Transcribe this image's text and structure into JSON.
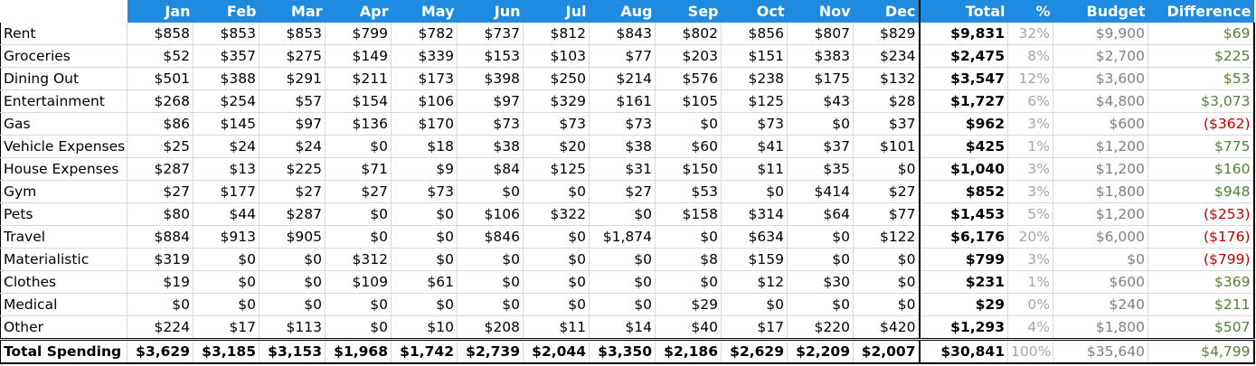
{
  "headers": {
    "months": [
      "Jan",
      "Feb",
      "Mar",
      "Apr",
      "May",
      "Jun",
      "Jul",
      "Aug",
      "Sep",
      "Oct",
      "Nov",
      "Dec"
    ],
    "total": "Total",
    "pct": "%",
    "budget": "Budget",
    "difference": "Difference"
  },
  "rows": [
    {
      "name": "Rent",
      "months": [
        "$858",
        "$853",
        "$853",
        "$799",
        "$782",
        "$737",
        "$812",
        "$843",
        "$802",
        "$856",
        "$807",
        "$829"
      ],
      "total": "$9,831",
      "pct": "32%",
      "budget": "$9,900",
      "diff": "$69",
      "diff_negative": false
    },
    {
      "name": "Groceries",
      "months": [
        "$52",
        "$357",
        "$275",
        "$149",
        "$339",
        "$153",
        "$103",
        "$77",
        "$203",
        "$151",
        "$383",
        "$234"
      ],
      "total": "$2,475",
      "pct": "8%",
      "budget": "$2,700",
      "diff": "$225",
      "diff_negative": false
    },
    {
      "name": "Dining Out",
      "months": [
        "$501",
        "$388",
        "$291",
        "$211",
        "$173",
        "$398",
        "$250",
        "$214",
        "$576",
        "$238",
        "$175",
        "$132"
      ],
      "total": "$3,547",
      "pct": "12%",
      "budget": "$3,600",
      "diff": "$53",
      "diff_negative": false
    },
    {
      "name": "Entertainment",
      "months": [
        "$268",
        "$254",
        "$57",
        "$154",
        "$106",
        "$97",
        "$329",
        "$161",
        "$105",
        "$125",
        "$43",
        "$28"
      ],
      "total": "$1,727",
      "pct": "6%",
      "budget": "$4,800",
      "diff": "$3,073",
      "diff_negative": false
    },
    {
      "name": "Gas",
      "months": [
        "$86",
        "$145",
        "$97",
        "$136",
        "$170",
        "$73",
        "$73",
        "$73",
        "$0",
        "$73",
        "$0",
        "$37"
      ],
      "total": "$962",
      "pct": "3%",
      "budget": "$600",
      "diff": "($362)",
      "diff_negative": true
    },
    {
      "name": "Vehicle Expenses",
      "months": [
        "$25",
        "$24",
        "$24",
        "$0",
        "$18",
        "$38",
        "$20",
        "$38",
        "$60",
        "$41",
        "$37",
        "$101"
      ],
      "total": "$425",
      "pct": "1%",
      "budget": "$1,200",
      "diff": "$775",
      "diff_negative": false
    },
    {
      "name": "House Expenses",
      "months": [
        "$287",
        "$13",
        "$225",
        "$71",
        "$9",
        "$84",
        "$125",
        "$31",
        "$150",
        "$11",
        "$35",
        "$0"
      ],
      "total": "$1,040",
      "pct": "3%",
      "budget": "$1,200",
      "diff": "$160",
      "diff_negative": false
    },
    {
      "name": "Gym",
      "months": [
        "$27",
        "$177",
        "$27",
        "$27",
        "$73",
        "$0",
        "$0",
        "$27",
        "$53",
        "$0",
        "$414",
        "$27"
      ],
      "total": "$852",
      "pct": "3%",
      "budget": "$1,800",
      "diff": "$948",
      "diff_negative": false
    },
    {
      "name": "Pets",
      "months": [
        "$80",
        "$44",
        "$287",
        "$0",
        "$0",
        "$106",
        "$322",
        "$0",
        "$158",
        "$314",
        "$64",
        "$77"
      ],
      "total": "$1,453",
      "pct": "5%",
      "budget": "$1,200",
      "diff": "($253)",
      "diff_negative": true
    },
    {
      "name": "Travel",
      "months": [
        "$884",
        "$913",
        "$905",
        "$0",
        "$0",
        "$846",
        "$0",
        "$1,874",
        "$0",
        "$634",
        "$0",
        "$122"
      ],
      "total": "$6,176",
      "pct": "20%",
      "budget": "$6,000",
      "diff": "($176)",
      "diff_negative": true
    },
    {
      "name": "Materialistic",
      "months": [
        "$319",
        "$0",
        "$0",
        "$312",
        "$0",
        "$0",
        "$0",
        "$0",
        "$8",
        "$159",
        "$0",
        "$0"
      ],
      "total": "$799",
      "pct": "3%",
      "budget": "$0",
      "diff": "($799)",
      "diff_negative": true
    },
    {
      "name": "Clothes",
      "months": [
        "$19",
        "$0",
        "$0",
        "$109",
        "$61",
        "$0",
        "$0",
        "$0",
        "$0",
        "$12",
        "$30",
        "$0"
      ],
      "total": "$231",
      "pct": "1%",
      "budget": "$600",
      "diff": "$369",
      "diff_negative": false
    },
    {
      "name": "Medical",
      "months": [
        "$0",
        "$0",
        "$0",
        "$0",
        "$0",
        "$0",
        "$0",
        "$0",
        "$29",
        "$0",
        "$0",
        "$0"
      ],
      "total": "$29",
      "pct": "0%",
      "budget": "$240",
      "diff": "$211",
      "diff_negative": false
    },
    {
      "name": "Other",
      "months": [
        "$224",
        "$17",
        "$113",
        "$0",
        "$10",
        "$208",
        "$11",
        "$14",
        "$40",
        "$17",
        "$220",
        "$420"
      ],
      "total": "$1,293",
      "pct": "4%",
      "budget": "$1,800",
      "diff": "$507",
      "diff_negative": false
    }
  ],
  "totals": {
    "label": "Total Spending",
    "months": [
      "$3,629",
      "$3,185",
      "$3,153",
      "$1,968",
      "$1,742",
      "$2,739",
      "$2,044",
      "$3,350",
      "$2,186",
      "$2,629",
      "$2,209",
      "$2,007"
    ],
    "total": "$30,841",
    "pct": "100%",
    "budget": "$35,640",
    "diff": "$4,799"
  },
  "colors": {
    "header_bg": "#1f8be0",
    "positive": "#538135",
    "negative": "#c00000",
    "muted": "#a6a6a6"
  }
}
